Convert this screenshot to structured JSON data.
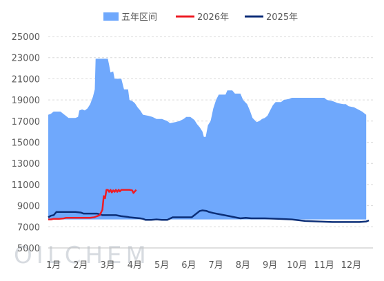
{
  "chart_data": {
    "type": "area",
    "title": "",
    "xlabel": "",
    "ylabel": "",
    "ylim": [
      5000,
      25000
    ],
    "yticks": [
      5000,
      7000,
      9000,
      11000,
      13000,
      15000,
      17000,
      19000,
      21000,
      23000,
      25000
    ],
    "xlim": [
      0,
      12
    ],
    "categories": [
      "1月",
      "2月",
      "3月",
      "4月",
      "5月",
      "6月",
      "7月",
      "8月",
      "9月",
      "10月",
      "11月",
      "12月"
    ],
    "grid": "horizontal",
    "legend": "top",
    "watermark": "OILCHEM",
    "band": {
      "name": "五年区间",
      "color": "#6fa8fc",
      "upper": [
        [
          0,
          17600
        ],
        [
          0.1,
          17700
        ],
        [
          0.2,
          17900
        ],
        [
          0.45,
          17900
        ],
        [
          0.55,
          17700
        ],
        [
          0.65,
          17500
        ],
        [
          0.75,
          17300
        ],
        [
          1.0,
          17300
        ],
        [
          1.1,
          17400
        ],
        [
          1.15,
          18000
        ],
        [
          1.25,
          18100
        ],
        [
          1.35,
          18000
        ],
        [
          1.45,
          18200
        ],
        [
          1.55,
          18600
        ],
        [
          1.65,
          19300
        ],
        [
          1.72,
          20000
        ],
        [
          1.75,
          22900
        ],
        [
          2.0,
          22900
        ],
        [
          2.2,
          22900
        ],
        [
          2.25,
          22300
        ],
        [
          2.3,
          21600
        ],
        [
          2.4,
          21700
        ],
        [
          2.45,
          21000
        ],
        [
          2.7,
          21000
        ],
        [
          2.8,
          20000
        ],
        [
          2.95,
          20000
        ],
        [
          3.0,
          19000
        ],
        [
          3.1,
          18900
        ],
        [
          3.2,
          18700
        ],
        [
          3.3,
          18300
        ],
        [
          3.4,
          18000
        ],
        [
          3.5,
          17600
        ],
        [
          3.7,
          17500
        ],
        [
          3.85,
          17400
        ],
        [
          4.0,
          17200
        ],
        [
          4.2,
          17200
        ],
        [
          4.3,
          17100
        ],
        [
          4.4,
          17000
        ],
        [
          4.5,
          16800
        ],
        [
          4.7,
          16900
        ],
        [
          4.85,
          17000
        ],
        [
          5.0,
          17200
        ],
        [
          5.1,
          17400
        ],
        [
          5.25,
          17400
        ],
        [
          5.4,
          17100
        ],
        [
          5.5,
          16700
        ],
        [
          5.6,
          16400
        ],
        [
          5.7,
          16000
        ],
        [
          5.75,
          15500
        ],
        [
          5.82,
          15500
        ],
        [
          5.9,
          16600
        ],
        [
          6.0,
          17000
        ],
        [
          6.1,
          18200
        ],
        [
          6.2,
          19000
        ],
        [
          6.3,
          19500
        ],
        [
          6.55,
          19500
        ],
        [
          6.62,
          19900
        ],
        [
          6.8,
          19900
        ],
        [
          6.9,
          19600
        ],
        [
          7.1,
          19600
        ],
        [
          7.2,
          19000
        ],
        [
          7.35,
          18600
        ],
        [
          7.45,
          18000
        ],
        [
          7.55,
          17300
        ],
        [
          7.7,
          16900
        ],
        [
          7.8,
          17000
        ],
        [
          7.9,
          17200
        ],
        [
          8.0,
          17300
        ],
        [
          8.1,
          17500
        ],
        [
          8.2,
          18000
        ],
        [
          8.3,
          18500
        ],
        [
          8.4,
          18800
        ],
        [
          8.6,
          18800
        ],
        [
          8.7,
          19000
        ],
        [
          8.9,
          19100
        ],
        [
          9.0,
          19200
        ],
        [
          10.2,
          19200
        ],
        [
          10.3,
          19000
        ],
        [
          10.5,
          18900
        ],
        [
          10.7,
          18700
        ],
        [
          10.9,
          18600
        ],
        [
          11.0,
          18600
        ],
        [
          11.1,
          18400
        ],
        [
          11.3,
          18300
        ],
        [
          11.45,
          18100
        ],
        [
          11.6,
          17900
        ],
        [
          11.7,
          17700
        ],
        [
          11.75,
          17600
        ]
      ],
      "lower": [
        [
          0,
          7700
        ],
        [
          11.75,
          7700
        ]
      ]
    },
    "series": [
      {
        "name": "2026年",
        "color": "#ee1c25",
        "points": [
          [
            0,
            7700
          ],
          [
            0.1,
            7700
          ],
          [
            0.2,
            7750
          ],
          [
            0.4,
            7750
          ],
          [
            0.55,
            7780
          ],
          [
            0.65,
            7850
          ],
          [
            1.0,
            7850
          ],
          [
            1.4,
            7850
          ],
          [
            1.55,
            7850
          ],
          [
            1.7,
            7900
          ],
          [
            1.8,
            8000
          ],
          [
            1.9,
            8100
          ],
          [
            2.0,
            8600
          ],
          [
            2.05,
            9900
          ],
          [
            2.1,
            9700
          ],
          [
            2.15,
            10500
          ],
          [
            2.2,
            10500
          ],
          [
            2.25,
            10300
          ],
          [
            2.3,
            10500
          ],
          [
            2.35,
            10250
          ],
          [
            2.4,
            10450
          ],
          [
            2.45,
            10300
          ],
          [
            2.5,
            10500
          ],
          [
            2.55,
            10300
          ],
          [
            2.6,
            10500
          ],
          [
            2.65,
            10350
          ],
          [
            2.7,
            10500
          ],
          [
            2.8,
            10500
          ],
          [
            3.0,
            10500
          ],
          [
            3.1,
            10450
          ],
          [
            3.15,
            10200
          ],
          [
            3.2,
            10350
          ],
          [
            3.25,
            10500
          ]
        ]
      },
      {
        "name": "2025年",
        "color": "#0c2f78",
        "points": [
          [
            0,
            7900
          ],
          [
            0.1,
            8050
          ],
          [
            0.2,
            8100
          ],
          [
            0.3,
            8400
          ],
          [
            0.5,
            8400
          ],
          [
            1.0,
            8400
          ],
          [
            1.2,
            8350
          ],
          [
            1.3,
            8250
          ],
          [
            1.8,
            8250
          ],
          [
            1.95,
            8150
          ],
          [
            2.0,
            8100
          ],
          [
            2.5,
            8100
          ],
          [
            2.7,
            8000
          ],
          [
            2.9,
            7950
          ],
          [
            3.0,
            7900
          ],
          [
            3.4,
            7800
          ],
          [
            3.5,
            7750
          ],
          [
            3.6,
            7650
          ],
          [
            3.8,
            7650
          ],
          [
            4.0,
            7700
          ],
          [
            4.2,
            7650
          ],
          [
            4.4,
            7650
          ],
          [
            4.6,
            7900
          ],
          [
            5.0,
            7900
          ],
          [
            5.3,
            7900
          ],
          [
            5.4,
            8100
          ],
          [
            5.5,
            8300
          ],
          [
            5.6,
            8500
          ],
          [
            5.7,
            8550
          ],
          [
            5.85,
            8500
          ],
          [
            5.95,
            8400
          ],
          [
            6.1,
            8300
          ],
          [
            6.3,
            8200
          ],
          [
            6.5,
            8100
          ],
          [
            6.7,
            8000
          ],
          [
            6.9,
            7900
          ],
          [
            7.1,
            7800
          ],
          [
            7.3,
            7850
          ],
          [
            7.5,
            7800
          ],
          [
            8.0,
            7800
          ],
          [
            8.5,
            7750
          ],
          [
            9.0,
            7700
          ],
          [
            9.5,
            7550
          ],
          [
            10.0,
            7500
          ],
          [
            10.5,
            7450
          ],
          [
            11.0,
            7450
          ],
          [
            11.5,
            7450
          ],
          [
            11.75,
            7500
          ],
          [
            11.85,
            7600
          ]
        ]
      }
    ]
  }
}
